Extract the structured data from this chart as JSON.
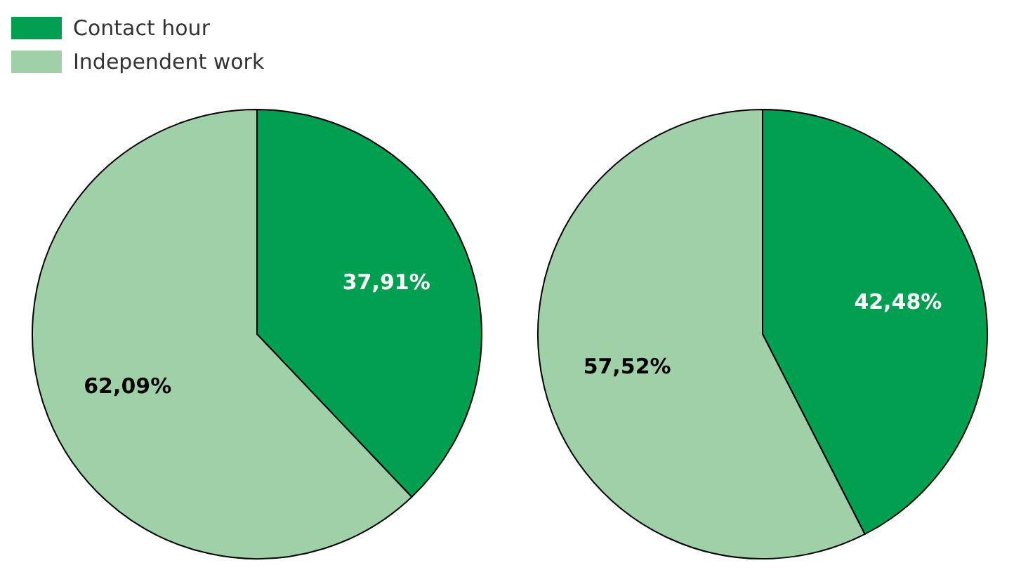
{
  "chart_data": [
    {
      "type": "pie",
      "categories": [
        "Contact hour",
        "Independent work"
      ],
      "values": [
        37.91,
        62.09
      ],
      "colors": [
        "#00a050",
        "#9fd0a8"
      ],
      "value_labels": [
        "37,91%",
        "62,09%"
      ],
      "legend": "top left"
    },
    {
      "type": "pie",
      "categories": [
        null,
        null
      ],
      "values": [
        42.48,
        57.52
      ],
      "colors": [
        "#00a050",
        "#9fd0a8"
      ],
      "value_labels": [
        "42,48%",
        "57,52%"
      ]
    }
  ]
}
